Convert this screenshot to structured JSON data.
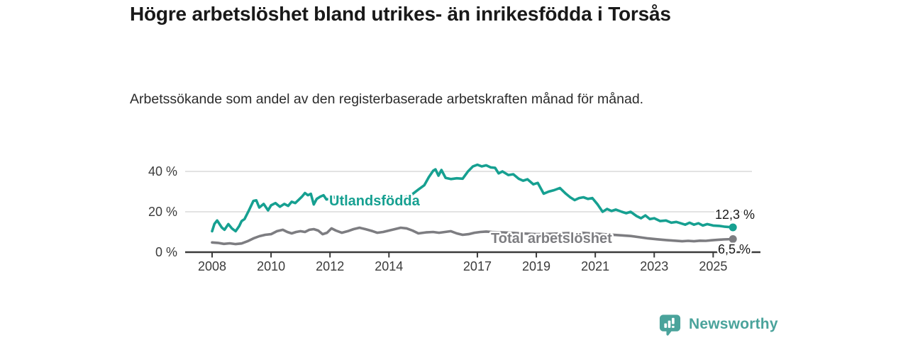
{
  "chart_data": {
    "type": "line",
    "title": "Högre arbetslöshet bland utrikes- än inrikesfödda i Torsås",
    "subtitle": "Arbetssökande som andel av den registerbaserade arbetskraften månad för månad.",
    "ylabel": "",
    "xlabel": "",
    "grid": "horizontal",
    "legend_position": "inline-on-line",
    "y_axis": {
      "unit": "%",
      "range": [
        0,
        47
      ],
      "ticks": [
        {
          "value": 0,
          "label": "0 %"
        },
        {
          "value": 20,
          "label": "20 %"
        },
        {
          "value": 40,
          "label": "40 %"
        }
      ]
    },
    "x_axis": {
      "unit": "year",
      "range": [
        2007.1,
        2026.6
      ],
      "ticks": [
        {
          "value": 2008,
          "label": "2008"
        },
        {
          "value": 2010,
          "label": "2010"
        },
        {
          "value": 2012,
          "label": "2012"
        },
        {
          "value": 2014,
          "label": "2014"
        },
        {
          "value": 2017,
          "label": "2017"
        },
        {
          "value": 2019,
          "label": "2019"
        },
        {
          "value": 2021,
          "label": "2021"
        },
        {
          "value": 2023,
          "label": "2023"
        },
        {
          "value": 2025,
          "label": "2025"
        }
      ]
    },
    "series": [
      {
        "name": "Utlandsfödda",
        "color": "#16a091",
        "end_label": "12,3 %",
        "last_value": 12.3,
        "points": [
          [
            2008.0,
            10.4
          ],
          [
            2008.08,
            14.0
          ],
          [
            2008.17,
            15.7
          ],
          [
            2008.33,
            12.2
          ],
          [
            2008.42,
            11.1
          ],
          [
            2008.55,
            13.9
          ],
          [
            2008.67,
            11.8
          ],
          [
            2008.8,
            10.4
          ],
          [
            2008.92,
            12.9
          ],
          [
            2009.0,
            15.4
          ],
          [
            2009.1,
            16.4
          ],
          [
            2009.25,
            20.7
          ],
          [
            2009.4,
            25.4
          ],
          [
            2009.5,
            25.7
          ],
          [
            2009.6,
            22.1
          ],
          [
            2009.75,
            23.9
          ],
          [
            2009.9,
            20.7
          ],
          [
            2010.0,
            23.2
          ],
          [
            2010.15,
            24.3
          ],
          [
            2010.3,
            22.5
          ],
          [
            2010.45,
            23.9
          ],
          [
            2010.58,
            22.9
          ],
          [
            2010.7,
            25.0
          ],
          [
            2010.82,
            24.3
          ],
          [
            2010.95,
            26.1
          ],
          [
            2011.05,
            27.5
          ],
          [
            2011.15,
            29.3
          ],
          [
            2011.25,
            28.2
          ],
          [
            2011.35,
            28.9
          ],
          [
            2011.45,
            23.6
          ],
          [
            2011.55,
            26.4
          ],
          [
            2011.67,
            27.5
          ],
          [
            2011.78,
            28.2
          ],
          [
            2011.88,
            26.1
          ],
          [
            2011.97,
            26.4
          ],
          [
            2012.08,
            27.9
          ],
          [
            2012.18,
            26.8
          ],
          [
            2012.3,
            25.7
          ],
          [
            2012.45,
            23.4
          ],
          [
            2012.6,
            23.6
          ],
          [
            2012.8,
            23.7
          ],
          [
            2013.0,
            24.0
          ],
          [
            2013.3,
            24.3
          ],
          [
            2013.6,
            24.8
          ],
          [
            2013.9,
            25.4
          ],
          [
            2014.2,
            26.0
          ],
          [
            2014.5,
            27.0
          ],
          [
            2014.75,
            28.2
          ],
          [
            2015.0,
            31.0
          ],
          [
            2015.2,
            33.2
          ],
          [
            2015.35,
            37.1
          ],
          [
            2015.5,
            40.3
          ],
          [
            2015.58,
            41.0
          ],
          [
            2015.68,
            37.9
          ],
          [
            2015.78,
            40.7
          ],
          [
            2015.92,
            36.8
          ],
          [
            2016.1,
            36.2
          ],
          [
            2016.3,
            36.6
          ],
          [
            2016.5,
            36.4
          ],
          [
            2016.68,
            40.0
          ],
          [
            2016.85,
            42.5
          ],
          [
            2017.0,
            43.3
          ],
          [
            2017.15,
            42.5
          ],
          [
            2017.3,
            43.0
          ],
          [
            2017.45,
            42.0
          ],
          [
            2017.6,
            41.8
          ],
          [
            2017.72,
            39.0
          ],
          [
            2017.85,
            40.0
          ],
          [
            2018.05,
            38.2
          ],
          [
            2018.22,
            38.6
          ],
          [
            2018.4,
            36.4
          ],
          [
            2018.55,
            35.4
          ],
          [
            2018.7,
            36.1
          ],
          [
            2018.9,
            33.6
          ],
          [
            2019.05,
            34.3
          ],
          [
            2019.25,
            29.0
          ],
          [
            2019.42,
            30.0
          ],
          [
            2019.6,
            30.7
          ],
          [
            2019.8,
            31.8
          ],
          [
            2020.0,
            29.0
          ],
          [
            2020.15,
            27.2
          ],
          [
            2020.3,
            25.8
          ],
          [
            2020.45,
            26.8
          ],
          [
            2020.6,
            27.2
          ],
          [
            2020.75,
            26.4
          ],
          [
            2020.9,
            26.8
          ],
          [
            2021.08,
            23.6
          ],
          [
            2021.25,
            20.0
          ],
          [
            2021.4,
            21.4
          ],
          [
            2021.55,
            20.4
          ],
          [
            2021.7,
            21.1
          ],
          [
            2021.9,
            20.0
          ],
          [
            2022.05,
            19.3
          ],
          [
            2022.2,
            20.0
          ],
          [
            2022.4,
            17.9
          ],
          [
            2022.55,
            16.8
          ],
          [
            2022.7,
            18.2
          ],
          [
            2022.85,
            16.4
          ],
          [
            2023.0,
            16.8
          ],
          [
            2023.2,
            15.4
          ],
          [
            2023.4,
            15.7
          ],
          [
            2023.58,
            14.6
          ],
          [
            2023.75,
            15.0
          ],
          [
            2023.9,
            14.3
          ],
          [
            2024.05,
            13.6
          ],
          [
            2024.2,
            14.6
          ],
          [
            2024.35,
            13.6
          ],
          [
            2024.5,
            14.3
          ],
          [
            2024.65,
            13.2
          ],
          [
            2024.8,
            13.9
          ],
          [
            2025.0,
            13.2
          ],
          [
            2025.2,
            13.0
          ],
          [
            2025.4,
            12.6
          ],
          [
            2025.67,
            12.3
          ]
        ]
      },
      {
        "name": "Total arbetslöshet",
        "color": "#7d7d81",
        "end_label": "6,5 %",
        "last_value": 6.5,
        "points": [
          [
            2008.0,
            4.8
          ],
          [
            2008.2,
            4.6
          ],
          [
            2008.4,
            4.1
          ],
          [
            2008.6,
            4.4
          ],
          [
            2008.8,
            4.0
          ],
          [
            2009.0,
            4.3
          ],
          [
            2009.2,
            5.4
          ],
          [
            2009.4,
            6.8
          ],
          [
            2009.6,
            7.9
          ],
          [
            2009.8,
            8.6
          ],
          [
            2010.0,
            8.9
          ],
          [
            2010.2,
            10.4
          ],
          [
            2010.4,
            11.1
          ],
          [
            2010.55,
            10.0
          ],
          [
            2010.7,
            9.3
          ],
          [
            2010.85,
            10.0
          ],
          [
            2011.0,
            10.4
          ],
          [
            2011.15,
            10.0
          ],
          [
            2011.3,
            11.1
          ],
          [
            2011.45,
            11.4
          ],
          [
            2011.6,
            10.7
          ],
          [
            2011.75,
            8.9
          ],
          [
            2011.9,
            9.6
          ],
          [
            2012.05,
            11.8
          ],
          [
            2012.2,
            10.7
          ],
          [
            2012.4,
            9.6
          ],
          [
            2012.6,
            10.4
          ],
          [
            2012.8,
            11.4
          ],
          [
            2013.0,
            12.1
          ],
          [
            2013.2,
            11.4
          ],
          [
            2013.45,
            10.4
          ],
          [
            2013.6,
            9.6
          ],
          [
            2013.8,
            10.0
          ],
          [
            2014.0,
            10.7
          ],
          [
            2014.2,
            11.4
          ],
          [
            2014.4,
            12.1
          ],
          [
            2014.6,
            11.8
          ],
          [
            2014.8,
            10.7
          ],
          [
            2015.0,
            9.3
          ],
          [
            2015.25,
            9.8
          ],
          [
            2015.5,
            10.0
          ],
          [
            2015.7,
            9.6
          ],
          [
            2015.9,
            10.0
          ],
          [
            2016.1,
            10.4
          ],
          [
            2016.3,
            9.3
          ],
          [
            2016.5,
            8.6
          ],
          [
            2016.7,
            8.9
          ],
          [
            2016.9,
            9.6
          ],
          [
            2017.1,
            10.0
          ],
          [
            2017.3,
            10.2
          ],
          [
            2017.5,
            10.0
          ],
          [
            2017.8,
            9.8
          ],
          [
            2018.1,
            9.6
          ],
          [
            2018.5,
            9.3
          ],
          [
            2019.0,
            8.9
          ],
          [
            2019.5,
            9.1
          ],
          [
            2020.0,
            9.4
          ],
          [
            2020.5,
            9.6
          ],
          [
            2021.0,
            9.2
          ],
          [
            2021.5,
            8.7
          ],
          [
            2021.9,
            8.3
          ],
          [
            2022.2,
            8.0
          ],
          [
            2022.5,
            7.4
          ],
          [
            2022.8,
            6.8
          ],
          [
            2023.1,
            6.4
          ],
          [
            2023.4,
            6.0
          ],
          [
            2023.7,
            5.7
          ],
          [
            2023.95,
            5.4
          ],
          [
            2024.15,
            5.6
          ],
          [
            2024.35,
            5.4
          ],
          [
            2024.55,
            5.7
          ],
          [
            2024.75,
            5.6
          ],
          [
            2024.95,
            5.9
          ],
          [
            2025.15,
            6.1
          ],
          [
            2025.35,
            6.3
          ],
          [
            2025.67,
            6.5
          ]
        ]
      }
    ]
  },
  "branding": {
    "name": "Newsworthy",
    "logo_icon": "bar-chart-speech-bubble-icon",
    "color": "#4aa39b"
  }
}
